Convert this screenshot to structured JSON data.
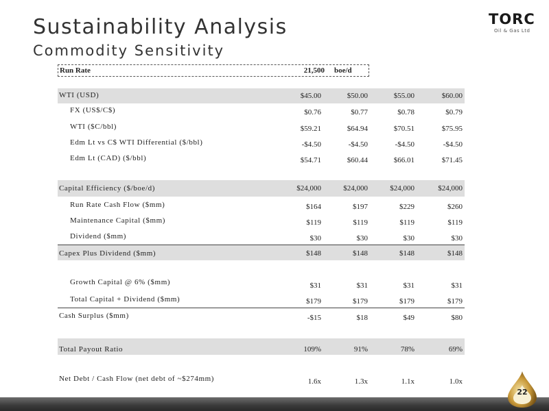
{
  "header": {
    "title": "Sustainability Analysis",
    "subtitle": "Commodity Sensitivity",
    "logo_text": "TORC",
    "logo_subtext": "Oil & Gas Ltd"
  },
  "run_rate": {
    "label": "Run Rate",
    "value": "21,500",
    "unit": "boe/d"
  },
  "rows": {
    "wti_usd": {
      "label": "WTI (USD)",
      "values": [
        "$45.00",
        "$50.00",
        "$55.00",
        "$60.00"
      ]
    },
    "fx": {
      "label": "FX (US$/C$)",
      "values": [
        "$0.76",
        "$0.77",
        "$0.78",
        "$0.79"
      ]
    },
    "wti_cad": {
      "label": "WTI ($C/bbl)",
      "values": [
        "$59.21",
        "$64.94",
        "$70.51",
        "$75.95"
      ]
    },
    "differential": {
      "label": "Edm Lt vs C$ WTI Differential ($/bbl)",
      "values": [
        "-$4.50",
        "-$4.50",
        "-$4.50",
        "-$4.50"
      ]
    },
    "edm_cad": {
      "label": "Edm Lt (CAD) ($/bbl)",
      "values": [
        "$54.71",
        "$60.44",
        "$66.01",
        "$71.45"
      ]
    },
    "cap_eff": {
      "label": "Capital Efficiency ($/boe/d)",
      "values": [
        "$24,000",
        "$24,000",
        "$24,000",
        "$24,000"
      ]
    },
    "cash_flow": {
      "label": "Run Rate Cash Flow ($mm)",
      "values": [
        "$164",
        "$197",
        "$229",
        "$260"
      ]
    },
    "maint_cap": {
      "label": "Maintenance Capital ($mm)",
      "values": [
        "$119",
        "$119",
        "$119",
        "$119"
      ]
    },
    "dividend": {
      "label": "Dividend ($mm)",
      "values": [
        "$30",
        "$30",
        "$30",
        "$30"
      ]
    },
    "capex_div": {
      "label": "Capex Plus Dividend ($mm)",
      "values": [
        "$148",
        "$148",
        "$148",
        "$148"
      ]
    },
    "growth_cap": {
      "label": "Growth Capital @ 6% ($mm)",
      "values": [
        "$31",
        "$31",
        "$31",
        "$31"
      ]
    },
    "total_cap": {
      "label": "Total Capital + Dividend ($mm)",
      "values": [
        "$179",
        "$179",
        "$179",
        "$179"
      ]
    },
    "cash_surplus": {
      "label": "Cash Surplus ($mm)",
      "values": [
        "-$15",
        "$18",
        "$49",
        "$80"
      ]
    },
    "payout": {
      "label": "Total Payout Ratio",
      "values": [
        "109%",
        "91%",
        "78%",
        "69%"
      ]
    },
    "net_debt": {
      "label": "Net Debt / Cash Flow (net debt of ~$274mm)",
      "values": [
        "1.6x",
        "1.3x",
        "1.1x",
        "1.0x"
      ]
    }
  },
  "page_number": "22"
}
